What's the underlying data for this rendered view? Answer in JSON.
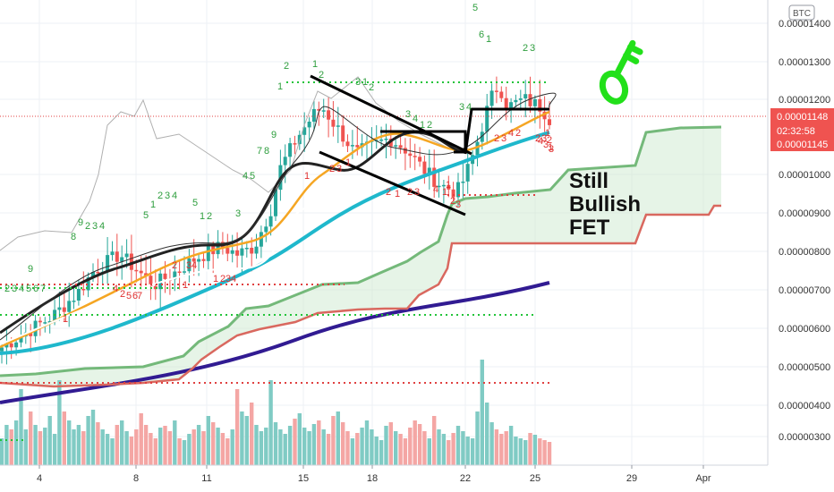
{
  "chart_data": {
    "type": "candlestick",
    "symbol_currency": "BTC",
    "y_axis": {
      "ticks": [
        "0.00001400",
        "0.00001300",
        "0.00001200",
        "0.00001000",
        "0.00000900",
        "0.00000800",
        "0.00000700",
        "0.00000600",
        "0.00000500",
        "0.00000400",
        "0.00000300"
      ],
      "tick_values": [
        1.4e-05,
        1.3e-05,
        1.2e-05,
        1e-05,
        9e-06,
        8e-06,
        7e-06,
        6e-06,
        5e-06,
        4e-06,
        3e-06
      ]
    },
    "x_axis": {
      "ticks": [
        "4",
        "8",
        "11",
        "15",
        "18",
        "22",
        "25",
        "29",
        "Apr"
      ]
    },
    "price_labels": {
      "current": "0.00001148",
      "countdown": "02:32:58",
      "secondary": "0.00001145"
    },
    "annotation": {
      "lines": [
        "Still",
        "Bullish",
        "FET"
      ]
    },
    "seq_green": [
      "9",
      "2",
      "3",
      "4",
      "5",
      "6",
      "7",
      "8",
      "9",
      "2",
      "3",
      "4",
      "5",
      "1",
      "2",
      "3",
      "4",
      "5",
      "1",
      "2",
      "3",
      "4",
      "5",
      "7",
      "8",
      "9",
      "1",
      "2",
      "1",
      "2",
      "3",
      "1",
      "2",
      "3",
      "4",
      "1",
      "2",
      "3",
      "4",
      "5",
      "6",
      "1",
      "2",
      "3"
    ],
    "seq_red": [
      "1",
      "2",
      "4",
      "5",
      "6",
      "7",
      "1",
      "2",
      "3",
      "4",
      "1",
      "2",
      "3",
      "4",
      "1",
      "2",
      "3",
      "1",
      "2",
      "1",
      "2",
      "3",
      "4",
      "1",
      "2",
      "3",
      "1",
      "2",
      "3",
      "4",
      "2",
      "3",
      "1",
      "2",
      "3",
      "4",
      "1",
      "2",
      "3"
    ],
    "colors": {
      "up": "#26a69a",
      "down": "#ef5350",
      "ema_fast": "#000000",
      "ema_orange": "#f5a623",
      "ema_cyan": "#1fb8cc",
      "ma_long": "#311b92",
      "cloud_upper": "#74b97a",
      "cloud_lower": "#d9685f",
      "key_icon": "#22e01a"
    }
  }
}
